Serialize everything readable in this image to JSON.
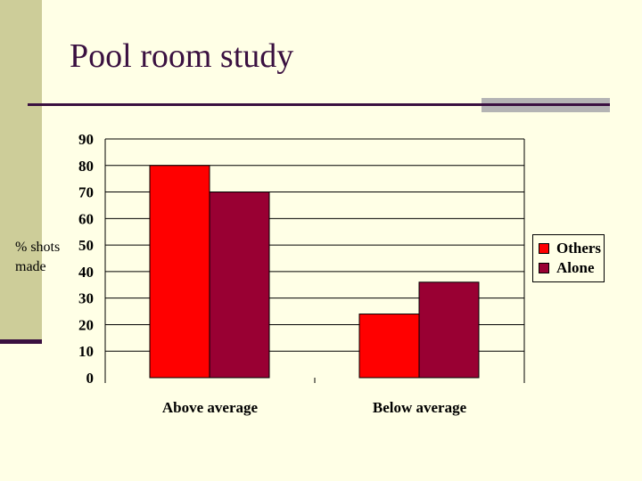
{
  "slide": {
    "title": "Pool room study"
  },
  "colors": {
    "background": "#ffffe6",
    "sidebar": "#cdcd99",
    "accent_dark": "#3a1040",
    "others": "#ff0000",
    "alone": "#990033"
  },
  "chart_data": {
    "type": "bar",
    "categories": [
      "Above average",
      "Below average"
    ],
    "series": [
      {
        "name": "Others",
        "values": [
          80,
          24
        ],
        "color": "#ff0000"
      },
      {
        "name": "Alone",
        "values": [
          70,
          36
        ],
        "color": "#990033"
      }
    ],
    "ylabel": "% shots made",
    "ylim": [
      0,
      90
    ],
    "yticks": [
      0,
      10,
      20,
      30,
      40,
      50,
      60,
      70,
      80,
      90
    ],
    "grid": true,
    "legend_position": "right"
  }
}
